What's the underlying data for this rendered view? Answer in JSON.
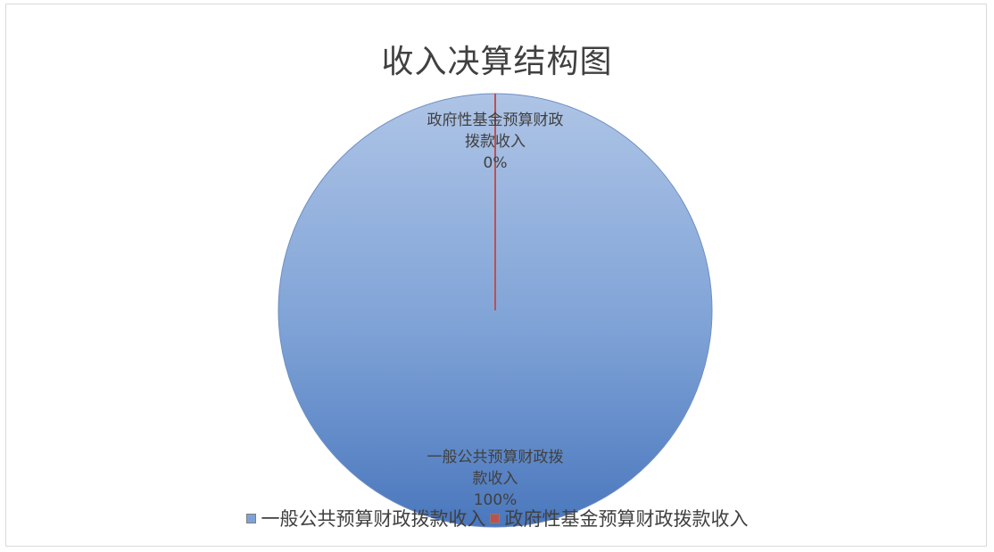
{
  "chart_data": {
    "type": "pie",
    "title": "收入决算结构图",
    "categories": [
      "一般公共预算财政拨款收入",
      "政府性基金预算财政拨款收入"
    ],
    "values": [
      100,
      0
    ],
    "data_labels": [
      {
        "lines": [
          "一般公共预算财政拨",
          "款收入"
        ],
        "percent": "100%"
      },
      {
        "lines": [
          "政府性基金预算财政",
          "拨款收入"
        ],
        "percent": "0%"
      }
    ],
    "colors": [
      "#5b84c4",
      "#c0504d"
    ],
    "legend": {
      "placement": "bottom",
      "entries": [
        "一般公共预算财政拨款收入",
        "政府性基金预算财政拨款收入"
      ]
    }
  }
}
